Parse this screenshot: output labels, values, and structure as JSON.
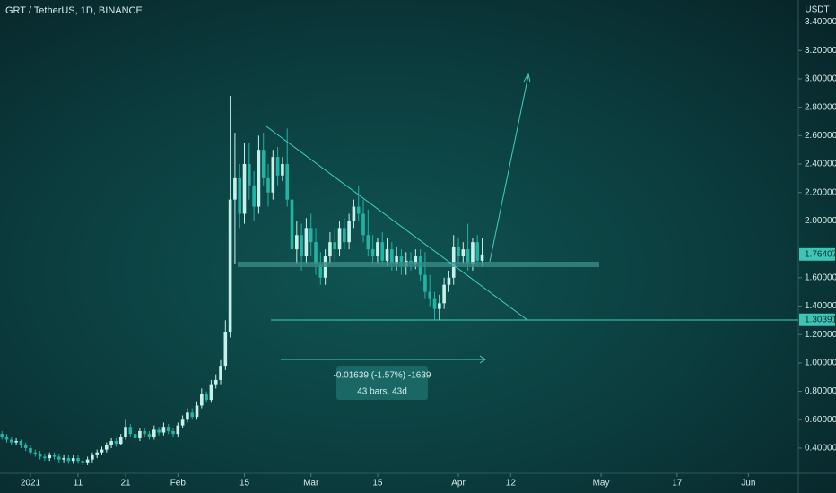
{
  "chart_data": {
    "type": "candlestick",
    "title": "GRT / TetherUS, 1D, BINANCE",
    "y_unit": "USDT",
    "x": [
      -6,
      -5,
      -4,
      -3,
      -2,
      -1,
      0,
      1,
      2,
      3,
      4,
      5,
      6,
      7,
      8,
      9,
      10,
      11,
      12,
      13,
      14,
      15,
      16,
      17,
      18,
      19,
      20,
      21,
      22,
      23,
      24,
      25,
      26,
      27,
      28,
      29,
      30,
      31,
      32,
      33,
      34,
      35,
      36,
      37,
      38,
      39,
      40,
      41,
      42,
      43,
      44,
      45,
      46,
      47,
      48,
      49,
      50,
      51,
      52,
      53,
      54,
      55,
      56,
      57,
      58,
      59,
      60,
      61,
      62,
      63,
      64,
      65,
      66,
      67,
      68,
      69,
      70,
      71,
      72,
      73,
      74,
      75,
      76,
      77,
      78,
      79,
      80,
      81,
      82,
      83,
      84,
      85,
      86,
      87,
      88,
      89,
      90,
      91,
      92,
      93,
      94,
      95
    ],
    "open": [
      0.5,
      0.48,
      0.46,
      0.44,
      0.45,
      0.42,
      0.4,
      0.37,
      0.36,
      0.34,
      0.33,
      0.35,
      0.34,
      0.32,
      0.33,
      0.31,
      0.33,
      0.31,
      0.3,
      0.32,
      0.35,
      0.37,
      0.39,
      0.42,
      0.45,
      0.43,
      0.48,
      0.55,
      0.5,
      0.47,
      0.52,
      0.5,
      0.48,
      0.53,
      0.51,
      0.55,
      0.52,
      0.5,
      0.56,
      0.6,
      0.65,
      0.62,
      0.7,
      0.78,
      0.74,
      0.85,
      0.88,
      0.98,
      1.22,
      2.15,
      2.3,
      2.05,
      2.4,
      2.25,
      2.1,
      2.5,
      2.3,
      2.2,
      2.45,
      2.32,
      2.4,
      2.15,
      1.8,
      1.9,
      1.75,
      1.95,
      1.85,
      1.7,
      1.6,
      1.75,
      1.85,
      1.8,
      1.95,
      1.85,
      2.0,
      2.1,
      2.05,
      1.9,
      1.8,
      1.75,
      1.85,
      1.72,
      1.8,
      1.7,
      1.75,
      1.68,
      1.72,
      1.7,
      1.75,
      1.62,
      1.5,
      1.45,
      1.38,
      1.42,
      1.55,
      1.6,
      1.82,
      1.75,
      1.8,
      1.7,
      1.85,
      1.72
    ],
    "high": [
      0.52,
      0.5,
      0.48,
      0.47,
      0.46,
      0.44,
      0.42,
      0.39,
      0.38,
      0.36,
      0.37,
      0.37,
      0.36,
      0.35,
      0.35,
      0.35,
      0.35,
      0.33,
      0.34,
      0.37,
      0.39,
      0.41,
      0.44,
      0.47,
      0.47,
      0.5,
      0.6,
      0.57,
      0.52,
      0.54,
      0.54,
      0.52,
      0.56,
      0.55,
      0.58,
      0.57,
      0.54,
      0.58,
      0.63,
      0.68,
      0.68,
      0.73,
      0.82,
      0.8,
      0.88,
      0.92,
      1.02,
      1.3,
      2.88,
      2.62,
      2.4,
      2.55,
      2.55,
      2.35,
      2.6,
      2.62,
      2.4,
      2.5,
      2.52,
      2.45,
      2.65,
      2.2,
      2.0,
      1.98,
      2.02,
      2.05,
      1.95,
      1.78,
      1.8,
      1.92,
      1.95,
      2.0,
      2.02,
      2.05,
      2.15,
      2.25,
      2.15,
      2.08,
      1.9,
      1.88,
      1.92,
      1.88,
      1.85,
      1.82,
      1.8,
      1.78,
      1.78,
      1.8,
      1.8,
      1.78,
      1.62,
      1.5,
      1.48,
      1.6,
      1.65,
      1.9,
      1.88,
      1.85,
      1.98,
      1.88,
      1.9,
      1.88
    ],
    "low": [
      0.46,
      0.44,
      0.42,
      0.42,
      0.4,
      0.38,
      0.35,
      0.34,
      0.32,
      0.31,
      0.31,
      0.32,
      0.3,
      0.3,
      0.29,
      0.29,
      0.29,
      0.28,
      0.28,
      0.3,
      0.33,
      0.35,
      0.37,
      0.4,
      0.41,
      0.42,
      0.46,
      0.48,
      0.45,
      0.45,
      0.48,
      0.46,
      0.46,
      0.49,
      0.49,
      0.5,
      0.48,
      0.48,
      0.54,
      0.58,
      0.6,
      0.6,
      0.68,
      0.72,
      0.72,
      0.82,
      0.85,
      0.95,
      1.18,
      1.7,
      1.95,
      1.98,
      2.15,
      2.0,
      2.05,
      2.25,
      2.1,
      2.15,
      2.25,
      2.28,
      2.1,
      1.3,
      1.7,
      1.65,
      1.7,
      1.75,
      1.62,
      1.55,
      1.55,
      1.7,
      1.72,
      1.75,
      1.8,
      1.8,
      1.95,
      2.0,
      1.85,
      1.75,
      1.7,
      1.7,
      1.68,
      1.68,
      1.65,
      1.65,
      1.62,
      1.62,
      1.65,
      1.66,
      1.58,
      1.45,
      1.4,
      1.3,
      1.3,
      1.38,
      1.5,
      1.55,
      1.7,
      1.7,
      1.65,
      1.65,
      1.68,
      1.68
    ],
    "close": [
      0.48,
      0.46,
      0.44,
      0.45,
      0.42,
      0.4,
      0.37,
      0.36,
      0.34,
      0.33,
      0.35,
      0.34,
      0.32,
      0.33,
      0.31,
      0.33,
      0.31,
      0.3,
      0.32,
      0.35,
      0.37,
      0.39,
      0.42,
      0.45,
      0.43,
      0.48,
      0.55,
      0.5,
      0.47,
      0.52,
      0.5,
      0.48,
      0.53,
      0.51,
      0.55,
      0.52,
      0.5,
      0.56,
      0.6,
      0.65,
      0.62,
      0.7,
      0.78,
      0.74,
      0.85,
      0.88,
      0.98,
      1.22,
      2.15,
      2.3,
      2.05,
      2.4,
      2.25,
      2.1,
      2.5,
      2.3,
      2.2,
      2.45,
      2.32,
      2.4,
      2.15,
      1.8,
      1.9,
      1.75,
      1.95,
      1.85,
      1.7,
      1.6,
      1.75,
      1.85,
      1.8,
      1.95,
      1.85,
      2.0,
      2.1,
      2.05,
      1.9,
      1.8,
      1.75,
      1.85,
      1.72,
      1.8,
      1.7,
      1.75,
      1.68,
      1.72,
      1.7,
      1.75,
      1.62,
      1.5,
      1.45,
      1.38,
      1.42,
      1.55,
      1.6,
      1.82,
      1.75,
      1.8,
      1.7,
      1.85,
      1.72,
      1.764
    ],
    "up_color": "#c4f2ea",
    "down_color": "#22b3a5",
    "xlim": [
      -6.415,
      161.5
    ],
    "ylim": [
      0.261,
      3.555
    ],
    "xticks": [
      {
        "value": 0,
        "label": "2021"
      },
      {
        "value": 10,
        "label": "11"
      },
      {
        "value": 20,
        "label": "21"
      },
      {
        "value": 31,
        "label": "Feb"
      },
      {
        "value": 45,
        "label": "15"
      },
      {
        "value": 59,
        "label": "Mar"
      },
      {
        "value": 73,
        "label": "15"
      },
      {
        "value": 90,
        "label": "Apr"
      },
      {
        "value": 101,
        "label": "12"
      },
      {
        "value": 120,
        "label": "May"
      },
      {
        "value": 136,
        "label": "17"
      },
      {
        "value": 151,
        "label": "Jun"
      }
    ],
    "yticks": [
      {
        "value": 0.4,
        "label": "0.40000"
      },
      {
        "value": 0.6,
        "label": "0.60000"
      },
      {
        "value": 0.8,
        "label": "0.80000"
      },
      {
        "value": 1.0,
        "label": "1.00000"
      },
      {
        "value": 1.2,
        "label": "1.20000"
      },
      {
        "value": 1.4,
        "label": "1.40000"
      },
      {
        "value": 1.6,
        "label": "1.60000"
      },
      {
        "value": 2.0,
        "label": "2.00000"
      },
      {
        "value": 2.2,
        "label": "2.20000"
      },
      {
        "value": 2.4,
        "label": "2.40000"
      },
      {
        "value": 2.6,
        "label": "2.60000"
      },
      {
        "value": 2.8,
        "label": "2.80000"
      },
      {
        "value": 3.0,
        "label": "3.00000"
      },
      {
        "value": 3.2,
        "label": "3.20000"
      },
      {
        "value": 3.4,
        "label": "3.40000"
      }
    ],
    "price_lines": [
      1.76407,
      1.30391
    ],
    "measure": {
      "change_label": "-0.01639 (-1.57%) -1639",
      "range_label": "43 bars, 43d"
    }
  }
}
